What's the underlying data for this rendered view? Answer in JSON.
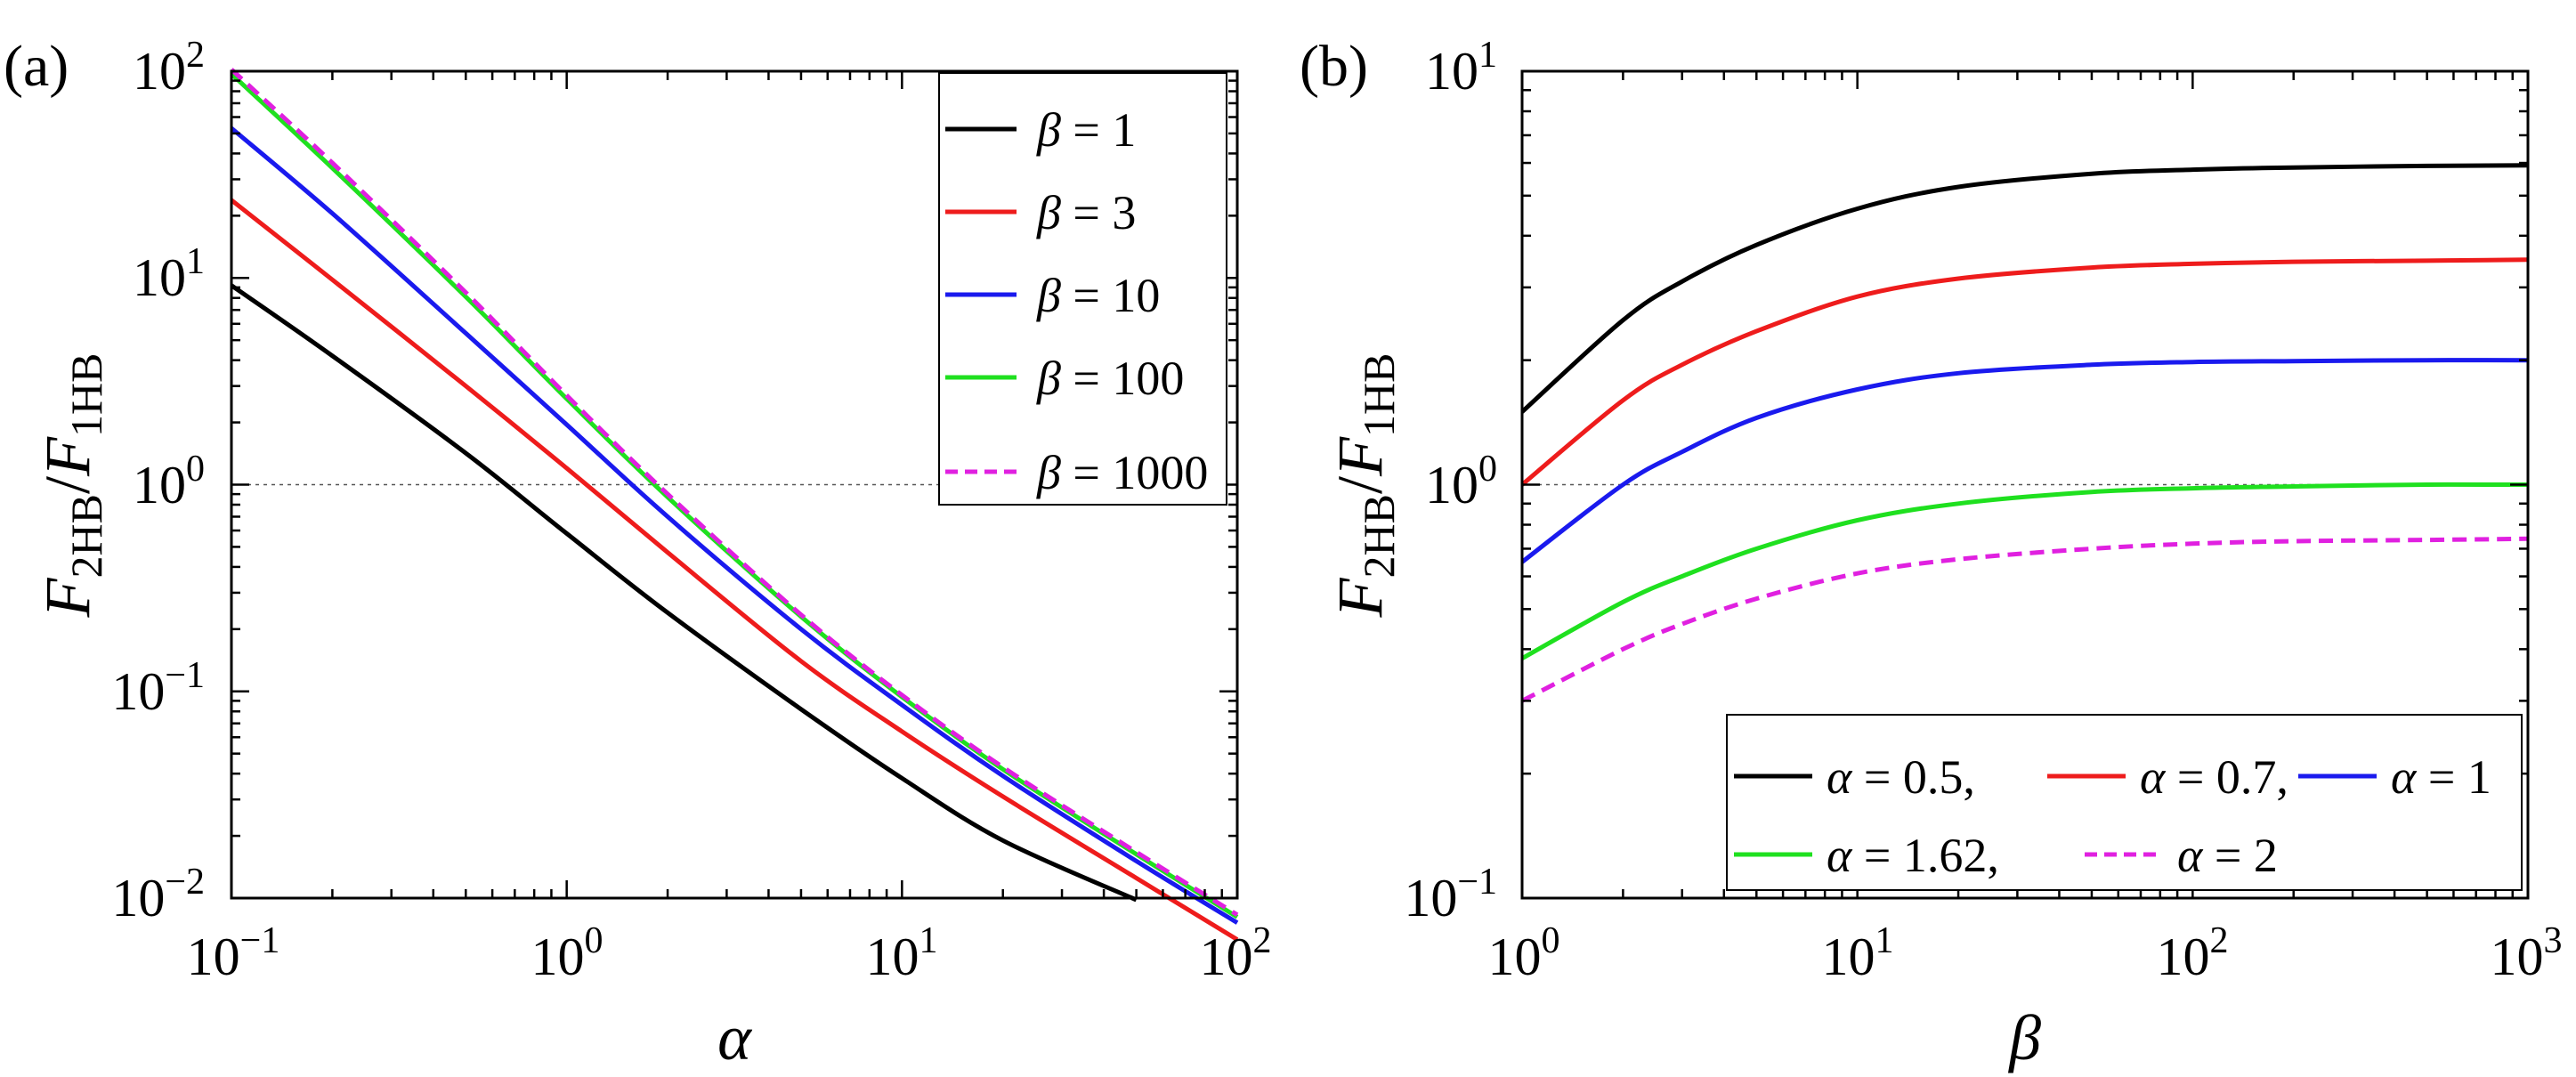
{
  "chart_data": [
    {
      "type": "line",
      "panel_label": "(a)",
      "xscale": "log",
      "yscale": "log",
      "xlabel": "α",
      "ylabel": {
        "main": "F",
        "sub2": "2HB",
        "slash": "/",
        "sub1": "1HB"
      },
      "xlim": [
        0.1,
        100
      ],
      "ylim": [
        0.01,
        100
      ],
      "xticks": [
        {
          "base": "10",
          "exp": "−1",
          "value": 0.1
        },
        {
          "base": "10",
          "exp": "0",
          "value": 1
        },
        {
          "base": "10",
          "exp": "1",
          "value": 10
        },
        {
          "base": "10",
          "exp": "2",
          "value": 100
        }
      ],
      "yticks": [
        {
          "base": "10",
          "exp": "−2",
          "value": 0.01
        },
        {
          "base": "10",
          "exp": "−1",
          "value": 0.1
        },
        {
          "base": "10",
          "exp": "0",
          "value": 1
        },
        {
          "base": "10",
          "exp": "1",
          "value": 10
        },
        {
          "base": "10",
          "exp": "2",
          "value": 100
        }
      ],
      "reference_line_y": 1,
      "legend_position": "top-right",
      "x": [
        0.1,
        0.2,
        0.5,
        1,
        2,
        5,
        10,
        20,
        50,
        100
      ],
      "series": [
        {
          "name": "β = 1",
          "symbol": "β",
          "eq": " = 1",
          "color": "#000000",
          "dashed": false,
          "values": [
            9.2,
            4.2,
            1.42,
            0.58,
            0.24,
            0.082,
            0.038,
            0.019,
            0.0098,
            null
          ]
        },
        {
          "name": "β = 3",
          "symbol": "β",
          "eq": " = 3",
          "color": "#ee1c1c",
          "dashed": false,
          "values": [
            23.8,
            9.8,
            3.0,
            1.2,
            0.47,
            0.14,
            0.064,
            0.031,
            0.0125,
            0.0063
          ]
        },
        {
          "name": "β = 10",
          "symbol": "β",
          "eq": " = 10",
          "color": "#1a1aee",
          "dashed": false,
          "values": [
            53,
            20.5,
            5.4,
            1.95,
            0.7,
            0.2,
            0.086,
            0.039,
            0.0151,
            0.0076
          ]
        },
        {
          "name": "β = 100",
          "symbol": "β",
          "eq": " = 100",
          "color": "#1fe01f",
          "dashed": false,
          "values": [
            97,
            34,
            8.1,
            2.6,
            0.87,
            0.23,
            0.094,
            0.042,
            0.0163,
            0.0081
          ]
        },
        {
          "name": "β = 1000",
          "symbol": "β",
          "eq": " = 1000",
          "color": "#e020e0",
          "dashed": true,
          "values": [
            102,
            36,
            8.5,
            2.7,
            0.9,
            0.235,
            0.096,
            0.043,
            0.0167,
            0.0083
          ]
        }
      ]
    },
    {
      "type": "line",
      "panel_label": "(b)",
      "xscale": "log",
      "yscale": "log",
      "xlabel": "β",
      "ylabel": {
        "main": "F",
        "sub2": "2HB",
        "slash": "/",
        "sub1": "1HB"
      },
      "xlim": [
        1,
        1000
      ],
      "ylim": [
        0.1,
        10
      ],
      "xticks": [
        {
          "base": "10",
          "exp": "0",
          "value": 1
        },
        {
          "base": "10",
          "exp": "1",
          "value": 10
        },
        {
          "base": "10",
          "exp": "2",
          "value": 100
        },
        {
          "base": "10",
          "exp": "3",
          "value": 1000
        }
      ],
      "yticks": [
        {
          "base": "10",
          "exp": "−1",
          "value": 0.1
        },
        {
          "base": "10",
          "exp": "0",
          "value": 1
        },
        {
          "base": "10",
          "exp": "1",
          "value": 10
        }
      ],
      "reference_line_y": 1,
      "legend_position": "bottom-right",
      "x": [
        1,
        2,
        3,
        5,
        10,
        20,
        50,
        100,
        200,
        500,
        1000
      ],
      "series": [
        {
          "name": "α = 0.5,",
          "symbol": "α",
          "eq": " = 0.5,",
          "color": "#000000",
          "dashed": false,
          "values": [
            1.5,
            2.5,
            3.1,
            3.8,
            4.65,
            5.25,
            5.65,
            5.78,
            5.85,
            5.9,
            5.92
          ]
        },
        {
          "name": "α = 0.7,",
          "symbol": "α",
          "eq": " = 0.7,",
          "color": "#ee1c1c",
          "dashed": false,
          "values": [
            1.0,
            1.6,
            1.95,
            2.35,
            2.85,
            3.15,
            3.35,
            3.42,
            3.46,
            3.48,
            3.5
          ]
        },
        {
          "name": "α = 1",
          "symbol": "α",
          "eq": " = 1",
          "color": "#1a1aee",
          "dashed": false,
          "values": [
            0.65,
            1.0,
            1.2,
            1.45,
            1.7,
            1.86,
            1.95,
            1.98,
            1.99,
            2.0,
            2.0
          ]
        },
        {
          "name": "α = 1.62,",
          "symbol": "α",
          "eq": " = 1.62,",
          "color": "#1fe01f",
          "dashed": false,
          "values": [
            0.38,
            0.52,
            0.6,
            0.7,
            0.82,
            0.9,
            0.96,
            0.98,
            0.99,
            1.0,
            1.0
          ]
        },
        {
          "name": "α = 2",
          "symbol": "α",
          "eq": " = 2",
          "color": "#e020e0",
          "dashed": true,
          "values": [
            0.3,
            0.4,
            0.46,
            0.53,
            0.61,
            0.66,
            0.7,
            0.72,
            0.73,
            0.735,
            0.74
          ]
        }
      ]
    }
  ]
}
